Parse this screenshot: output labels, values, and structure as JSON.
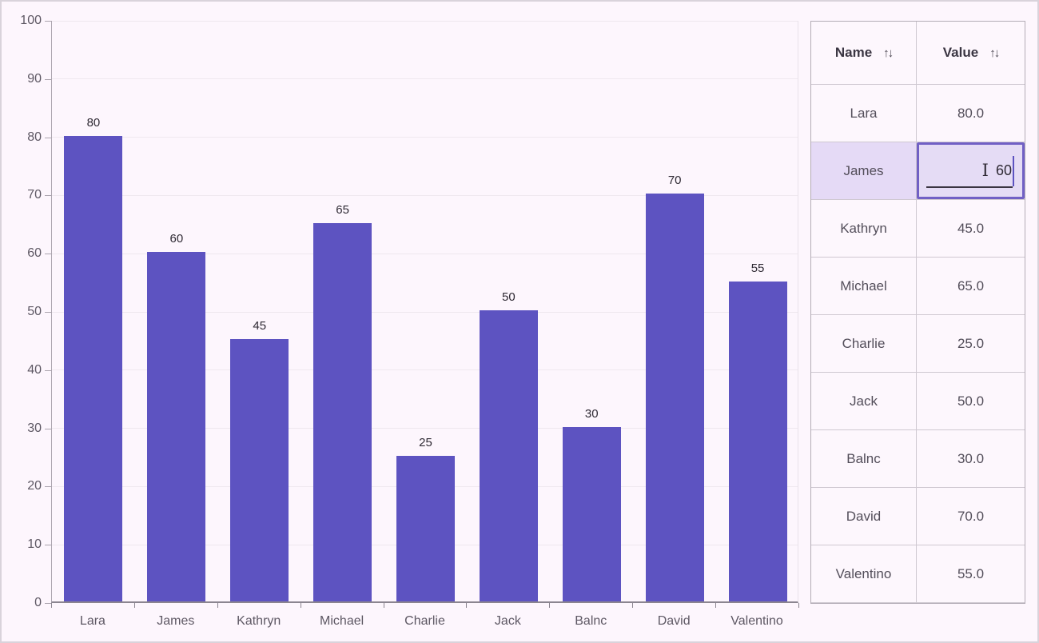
{
  "chart_data": {
    "type": "bar",
    "categories": [
      "Lara",
      "James",
      "Kathryn",
      "Michael",
      "Charlie",
      "Jack",
      "Balnc",
      "David",
      "Valentino"
    ],
    "values": [
      80,
      60,
      45,
      65,
      25,
      50,
      30,
      70,
      55
    ],
    "value_labels": [
      "80",
      "60",
      "45",
      "65",
      "25",
      "50",
      "30",
      "70",
      "55"
    ],
    "title": "",
    "xlabel": "",
    "ylabel": "",
    "ylim": [
      0,
      100
    ],
    "ytick_interval": 10,
    "ytick_labels": [
      "0",
      "10",
      "20",
      "30",
      "40",
      "50",
      "60",
      "70",
      "80",
      "90",
      "100"
    ],
    "grid": true,
    "legend": "none",
    "bar_color": "#5d53c1"
  },
  "table": {
    "columns": [
      {
        "label": "Name",
        "sort_icon": "↑↓"
      },
      {
        "label": "Value",
        "sort_icon": "↑↓"
      }
    ],
    "rows": [
      {
        "name": "Lara",
        "value": "80.0"
      },
      {
        "name": "James",
        "value": "60.0",
        "selected": true,
        "editing": true,
        "edit_value": "60"
      },
      {
        "name": "Kathryn",
        "value": "45.0"
      },
      {
        "name": "Michael",
        "value": "65.0"
      },
      {
        "name": "Charlie",
        "value": "25.0"
      },
      {
        "name": "Jack",
        "value": "50.0"
      },
      {
        "name": "Balnc",
        "value": "30.0"
      },
      {
        "name": "David",
        "value": "70.0"
      },
      {
        "name": "Valentino",
        "value": "55.0"
      }
    ]
  },
  "colors": {
    "background": "#fdf6fd",
    "bar": "#5d53c1",
    "selection_background": "#e5daf6",
    "edit_border": "#7160c5",
    "gridline": "#efe8ef"
  }
}
